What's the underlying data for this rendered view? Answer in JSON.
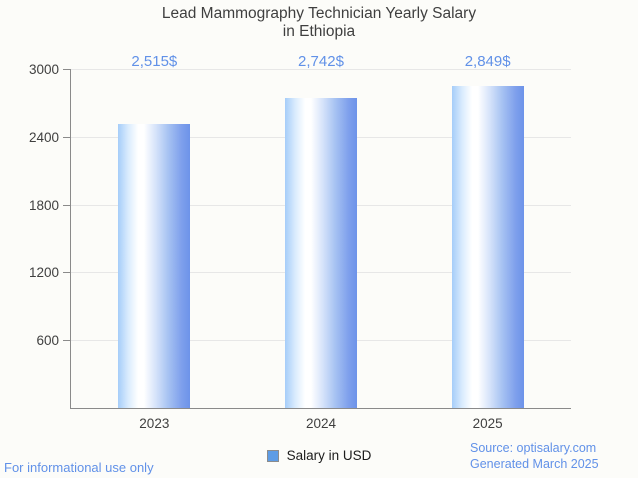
{
  "title": {
    "line1": "Lead Mammography Technician Yearly Salary",
    "line2": "in Ethiopia"
  },
  "chart_data": {
    "type": "bar",
    "title": "Lead Mammography Technician Yearly Salary in Ethiopia",
    "categories": [
      "2023",
      "2024",
      "2025"
    ],
    "values": [
      2515,
      2742,
      2849
    ],
    "value_labels": [
      "2,515$",
      "2,742$",
      "2,849$"
    ],
    "series_name": "Salary in USD",
    "xlabel": "",
    "ylabel": "",
    "ylim": [
      0,
      3000
    ],
    "yticks": [
      600,
      1200,
      1800,
      2400,
      3000
    ],
    "grid": "horizontal-only",
    "legend_position": "bottom-center"
  },
  "legend": {
    "label": "Salary in USD"
  },
  "footer": {
    "left": "For informational use only",
    "source": "Source: optisalary.com",
    "generated": "Generated March 2025"
  },
  "colors": {
    "accent_blue_text": "#6191e8",
    "bar_gradient_left": "#a5cdf9",
    "bar_gradient_mid": "#ffffff",
    "bar_gradient_right": "#6d93e9",
    "legend_square": "#5e9ce5",
    "grid_line": "#e7e7e7",
    "axis_line": "#8a8a8a",
    "title_text": "#3f3f3f",
    "background": "#fcfcf9"
  }
}
